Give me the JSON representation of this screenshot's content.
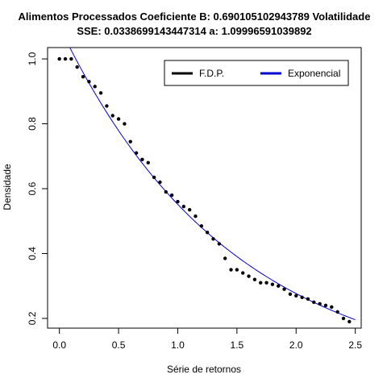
{
  "chart_data": {
    "type": "scatter",
    "title_line1": "Alimentos Processados Coeficiente B:  0.690105102943789 Volatilidade",
    "title_line2": "SSE: 0.0338699143447314  a:  1.09996591039892",
    "xlabel": "Série de retornos",
    "ylabel": "Densidade",
    "xlim": [
      -0.1,
      2.55
    ],
    "ylim": [
      0.17,
      1.035
    ],
    "x_ticks": [
      "0.0",
      "0.5",
      "1.0",
      "1.5",
      "2.0",
      "2.5"
    ],
    "x_tick_values": [
      0,
      0.5,
      1.0,
      1.5,
      2.0,
      2.5
    ],
    "y_ticks": [
      "0.2",
      "0.4",
      "0.6",
      "0.8",
      "1.0"
    ],
    "y_tick_values": [
      0.2,
      0.4,
      0.6,
      0.8,
      1.0
    ],
    "grid": false,
    "legend_position": "top-right",
    "series": [
      {
        "name": "F.D.P.",
        "kind": "points",
        "color": "#000000",
        "x": [
          0.0,
          0.05,
          0.1,
          0.15,
          0.2,
          0.25,
          0.3,
          0.35,
          0.4,
          0.45,
          0.5,
          0.55,
          0.6,
          0.65,
          0.7,
          0.75,
          0.8,
          0.85,
          0.9,
          0.95,
          1.0,
          1.05,
          1.1,
          1.15,
          1.2,
          1.25,
          1.3,
          1.35,
          1.4,
          1.45,
          1.5,
          1.55,
          1.6,
          1.65,
          1.7,
          1.75,
          1.8,
          1.85,
          1.9,
          1.95,
          2.0,
          2.05,
          2.1,
          2.15,
          2.2,
          2.25,
          2.3,
          2.35,
          2.4,
          2.45
        ],
        "y": [
          1.0,
          1.0,
          1.0,
          0.975,
          0.945,
          0.93,
          0.915,
          0.895,
          0.855,
          0.825,
          0.815,
          0.8,
          0.745,
          0.71,
          0.69,
          0.68,
          0.635,
          0.62,
          0.59,
          0.58,
          0.56,
          0.545,
          0.535,
          0.515,
          0.485,
          0.465,
          0.445,
          0.43,
          0.385,
          0.35,
          0.35,
          0.34,
          0.33,
          0.32,
          0.31,
          0.31,
          0.305,
          0.3,
          0.29,
          0.275,
          0.27,
          0.265,
          0.26,
          0.25,
          0.245,
          0.24,
          0.235,
          0.22,
          0.2,
          0.19
        ]
      },
      {
        "name": "Exponencial",
        "kind": "line",
        "color": "#0000CD",
        "a": 1.09996591039892,
        "b": 0.690105102943789,
        "x_start": 0.0,
        "x_end": 2.5
      }
    ]
  }
}
